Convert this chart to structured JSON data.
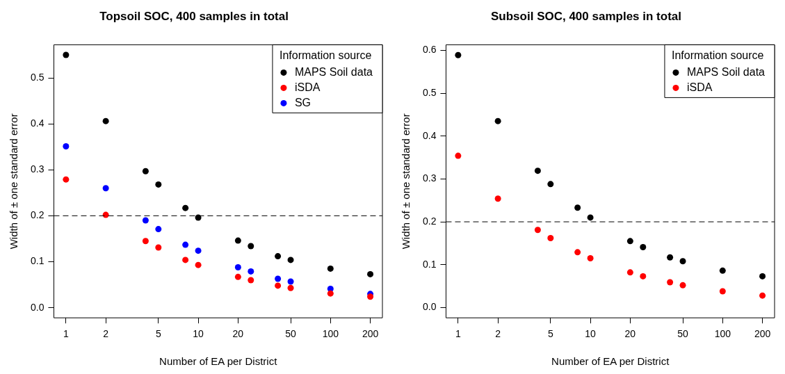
{
  "chart_data": [
    {
      "type": "scatter",
      "title": "Topsoil SOC, 400 samples in total",
      "xlabel": "Number of EA per District",
      "ylabel": "Width of ± one standard error",
      "legend_title": "Information source",
      "legend": "top right",
      "marker": "circle",
      "log": "x",
      "grid": false,
      "x": [
        1,
        2,
        4,
        5,
        8,
        10,
        20,
        25,
        40,
        50,
        100,
        200
      ],
      "xlim": [
        0.81,
        247
      ],
      "xticks": [
        1,
        2,
        5,
        10,
        20,
        50,
        100,
        200
      ],
      "ylim": [
        -0.022,
        0.572
      ],
      "yticks": [
        {
          "value": 0,
          "label": "0.0"
        },
        0.1,
        0.2,
        0.3,
        0.4,
        0.5
      ],
      "ref_lines": [
        {
          "axis": "y",
          "value": 0.2,
          "line_style": "dashed",
          "color": "#000000"
        }
      ],
      "series": [
        {
          "name": "MAPS Soil data",
          "color": "#000000",
          "values": [
            0.55,
            0.406,
            0.297,
            0.268,
            0.217,
            0.196,
            0.146,
            0.134,
            0.112,
            0.104,
            0.085,
            0.073
          ]
        },
        {
          "name": "iSDA",
          "color": "#ff0000",
          "values": [
            0.279,
            0.202,
            0.145,
            0.131,
            0.104,
            0.093,
            0.067,
            0.06,
            0.048,
            0.043,
            0.031,
            0.024
          ]
        },
        {
          "name": "SG",
          "color": "#0000ff",
          "values": [
            0.351,
            0.26,
            0.19,
            0.171,
            0.137,
            0.124,
            0.088,
            0.079,
            0.063,
            0.057,
            0.041,
            0.03
          ]
        }
      ]
    },
    {
      "type": "scatter",
      "title": "Subsoil SOC, 400 samples in total",
      "xlabel": "Number of EA per District",
      "ylabel": "Width of ± one standard error",
      "legend_title": "Information source",
      "legend": "top right",
      "marker": "circle",
      "log": "x",
      "grid": false,
      "x": [
        1,
        2,
        4,
        5,
        8,
        10,
        20,
        25,
        40,
        50,
        100,
        200
      ],
      "xlim": [
        0.81,
        247
      ],
      "xticks": [
        1,
        2,
        5,
        10,
        20,
        50,
        100,
        200
      ],
      "ylim": [
        -0.024,
        0.613
      ],
      "yticks": [
        {
          "value": 0,
          "label": "0.0"
        },
        0.1,
        0.2,
        0.3,
        0.4,
        0.5,
        0.6
      ],
      "ref_lines": [
        {
          "axis": "y",
          "value": 0.2,
          "line_style": "dashed",
          "color": "#000000"
        }
      ],
      "series": [
        {
          "name": "MAPS Soil data",
          "color": "#000000",
          "values": [
            0.589,
            0.435,
            0.319,
            0.288,
            0.233,
            0.21,
            0.155,
            0.141,
            0.117,
            0.108,
            0.086,
            0.073
          ]
        },
        {
          "name": "iSDA",
          "color": "#ff0000",
          "values": [
            0.354,
            0.254,
            0.181,
            0.162,
            0.129,
            0.115,
            0.082,
            0.073,
            0.059,
            0.052,
            0.038,
            0.028
          ]
        }
      ]
    }
  ]
}
